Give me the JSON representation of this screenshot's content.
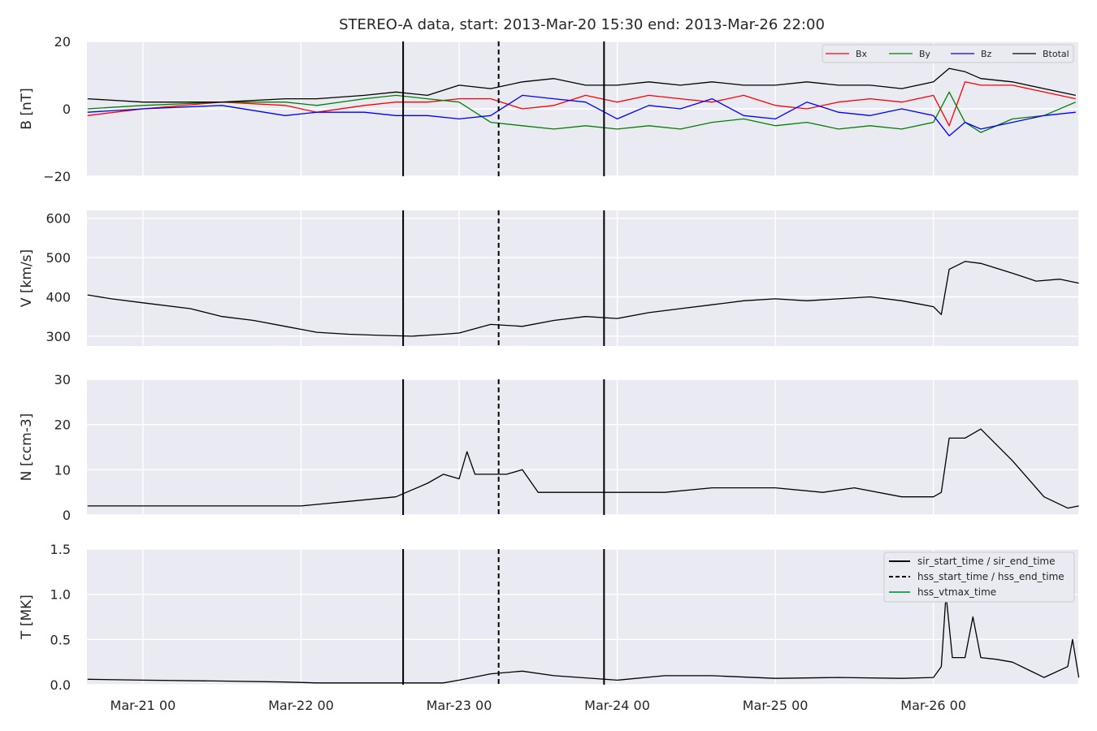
{
  "title": "STEREO-A data, start: 2013-Mar-20 15:30  end: 2013-Mar-26 22:00",
  "x_tick_labels": [
    "Mar-21 00",
    "Mar-22 00",
    "Mar-23 00",
    "Mar-24 00",
    "Mar-25 00",
    "Mar-26 00"
  ],
  "colors": {
    "panel_bg": "#eaeaf2",
    "grid": "#ffffff",
    "bx": "#ff0000",
    "by": "#008000",
    "bz": "#0000ff",
    "btotal": "#000000",
    "vtmax": "#2ca25f"
  },
  "legend_b": [
    "Bx",
    "By",
    "Bz",
    "Btotal"
  ],
  "legend_events": [
    "sir_start_time / sir_end_time",
    "hss_start_time / hss_end_time",
    "hss_vtmax_time"
  ],
  "chart_data": [
    {
      "type": "line",
      "ylabel": "B [nT]",
      "ylim": [
        -20,
        20
      ],
      "yticks": [
        -20,
        0,
        20
      ],
      "ytick_labels": [
        "−20",
        "0",
        "20"
      ],
      "xlim_days": [
        20.6458,
        26.9167
      ],
      "x_unit": "day of March 2013",
      "legend_position": "top-right",
      "series": [
        {
          "name": "Bx",
          "x": [
            20.65,
            21.0,
            21.5,
            21.9,
            22.1,
            22.4,
            22.6,
            22.8,
            23.0,
            23.2,
            23.4,
            23.6,
            23.8,
            24.0,
            24.2,
            24.4,
            24.6,
            24.8,
            25.0,
            25.2,
            25.4,
            25.6,
            25.8,
            26.0,
            26.1,
            26.2,
            26.3,
            26.5,
            26.7,
            26.9
          ],
          "values": [
            -2,
            0,
            2,
            1,
            -1,
            1,
            2,
            2,
            3,
            3,
            0,
            1,
            4,
            2,
            4,
            3,
            2,
            4,
            1,
            0,
            2,
            3,
            2,
            4,
            -5,
            8,
            7,
            7,
            5,
            3
          ]
        },
        {
          "name": "By",
          "x": [
            20.65,
            21.0,
            21.5,
            21.9,
            22.1,
            22.4,
            22.6,
            22.8,
            23.0,
            23.2,
            23.4,
            23.6,
            23.8,
            24.0,
            24.2,
            24.4,
            24.6,
            24.8,
            25.0,
            25.2,
            25.4,
            25.6,
            25.8,
            26.0,
            26.1,
            26.2,
            26.3,
            26.5,
            26.7,
            26.9
          ],
          "values": [
            0,
            1,
            2,
            2,
            1,
            3,
            4,
            3,
            2,
            -4,
            -5,
            -6,
            -5,
            -6,
            -5,
            -6,
            -4,
            -3,
            -5,
            -4,
            -6,
            -5,
            -6,
            -4,
            5,
            -4,
            -7,
            -3,
            -2,
            2
          ]
        },
        {
          "name": "Bz",
          "x": [
            20.65,
            21.0,
            21.5,
            21.9,
            22.1,
            22.4,
            22.6,
            22.8,
            23.0,
            23.2,
            23.4,
            23.6,
            23.8,
            24.0,
            24.2,
            24.4,
            24.6,
            24.8,
            25.0,
            25.2,
            25.4,
            25.6,
            25.8,
            26.0,
            26.1,
            26.2,
            26.3,
            26.5,
            26.7,
            26.9
          ],
          "values": [
            -1,
            0,
            1,
            -2,
            -1,
            -1,
            -2,
            -2,
            -3,
            -2,
            4,
            3,
            2,
            -3,
            1,
            0,
            3,
            -2,
            -3,
            2,
            -1,
            -2,
            0,
            -2,
            -8,
            -4,
            -6,
            -4,
            -2,
            -1
          ]
        },
        {
          "name": "Btotal",
          "x": [
            20.65,
            21.0,
            21.5,
            21.9,
            22.1,
            22.4,
            22.6,
            22.8,
            23.0,
            23.2,
            23.4,
            23.6,
            23.8,
            24.0,
            24.2,
            24.4,
            24.6,
            24.8,
            25.0,
            25.2,
            25.4,
            25.6,
            25.8,
            26.0,
            26.1,
            26.2,
            26.3,
            26.5,
            26.7,
            26.9
          ],
          "values": [
            3,
            2,
            2,
            3,
            3,
            4,
            5,
            4,
            7,
            6,
            8,
            9,
            7,
            7,
            8,
            7,
            8,
            7,
            7,
            8,
            7,
            7,
            6,
            8,
            12,
            11,
            9,
            8,
            6,
            4
          ]
        }
      ]
    },
    {
      "type": "line",
      "ylabel": "V [km/s]",
      "ylim": [
        275,
        620
      ],
      "yticks": [
        300,
        400,
        500,
        600
      ],
      "ytick_labels": [
        "300",
        "400",
        "500",
        "600"
      ],
      "series": [
        {
          "x": [
            20.65,
            20.8,
            21.0,
            21.3,
            21.5,
            21.7,
            21.9,
            22.1,
            22.3,
            22.5,
            22.7,
            22.9,
            23.0,
            23.2,
            23.4,
            23.6,
            23.8,
            24.0,
            24.2,
            24.4,
            24.6,
            24.8,
            25.0,
            25.2,
            25.4,
            25.6,
            25.8,
            26.0,
            26.05,
            26.1,
            26.2,
            26.3,
            26.5,
            26.65,
            26.8,
            26.92
          ],
          "values": [
            405,
            395,
            385,
            370,
            350,
            340,
            325,
            310,
            305,
            302,
            300,
            305,
            308,
            330,
            325,
            340,
            350,
            345,
            360,
            370,
            380,
            390,
            395,
            390,
            395,
            400,
            390,
            375,
            355,
            470,
            490,
            485,
            460,
            440,
            445,
            435
          ]
        }
      ]
    },
    {
      "type": "line",
      "ylabel": "N [ccm-3]",
      "ylim": [
        0,
        30
      ],
      "yticks": [
        0,
        10,
        20,
        30
      ],
      "ytick_labels": [
        "0",
        "10",
        "20",
        "30"
      ],
      "series": [
        {
          "x": [
            20.65,
            21.0,
            21.5,
            21.9,
            22.0,
            22.3,
            22.6,
            22.8,
            22.9,
            23.0,
            23.05,
            23.1,
            23.2,
            23.3,
            23.4,
            23.5,
            23.7,
            24.0,
            24.3,
            24.6,
            25.0,
            25.3,
            25.5,
            25.8,
            26.0,
            26.05,
            26.1,
            26.2,
            26.3,
            26.5,
            26.7,
            26.85,
            26.92
          ],
          "values": [
            2,
            2,
            2,
            2,
            2,
            3,
            4,
            7,
            9,
            8,
            14,
            9,
            9,
            9,
            10,
            5,
            5,
            5,
            5,
            6,
            6,
            5,
            6,
            4,
            4,
            5,
            17,
            17,
            19,
            12,
            4,
            1.5,
            2
          ]
        }
      ]
    },
    {
      "type": "line",
      "ylabel": "T [MK]",
      "ylim": [
        0,
        1.5
      ],
      "yticks": [
        0,
        0.5,
        1.0,
        1.5
      ],
      "ytick_labels": [
        "0.0",
        "0.5",
        "1.0",
        "1.5"
      ],
      "legend_position": "top-right",
      "series": [
        {
          "x": [
            20.65,
            21.0,
            21.5,
            21.9,
            22.1,
            22.6,
            22.9,
            23.0,
            23.2,
            23.4,
            23.6,
            24.0,
            24.3,
            24.6,
            25.0,
            25.4,
            25.8,
            26.0,
            26.05,
            26.08,
            26.12,
            26.2,
            26.25,
            26.3,
            26.4,
            26.5,
            26.7,
            26.85,
            26.88,
            26.92
          ],
          "values": [
            0.06,
            0.05,
            0.04,
            0.03,
            0.02,
            0.02,
            0.02,
            0.05,
            0.12,
            0.15,
            0.1,
            0.05,
            0.1,
            0.1,
            0.07,
            0.08,
            0.07,
            0.08,
            0.2,
            1.0,
            0.3,
            0.3,
            0.75,
            0.3,
            0.28,
            0.25,
            0.08,
            0.2,
            0.5,
            0.08
          ]
        }
      ]
    }
  ],
  "event_lines": {
    "sir_start_time": 22.6458,
    "hss_start_time": 23.25,
    "sir_end_time": 23.9167
  }
}
